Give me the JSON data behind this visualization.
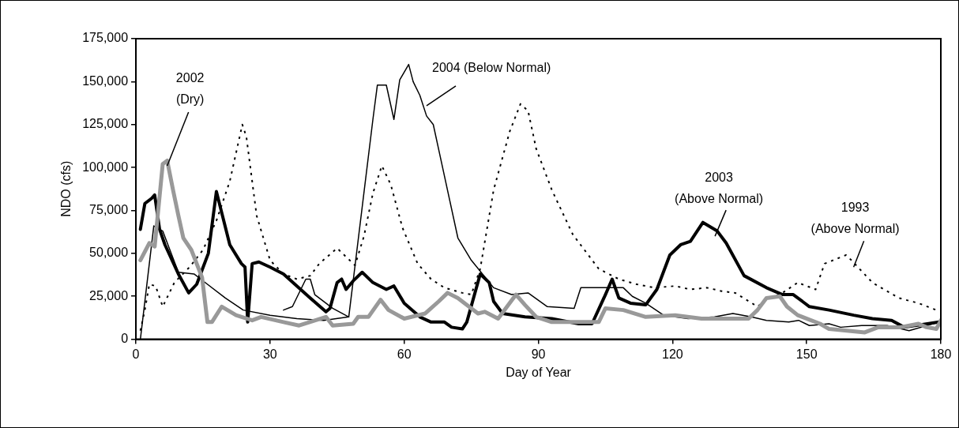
{
  "chart_data": {
    "type": "line",
    "xlabel": "Day of Year",
    "ylabel": "NDO (cfs)",
    "xlim": [
      0,
      180
    ],
    "xticks": [
      0,
      30,
      60,
      90,
      120,
      150,
      180
    ],
    "ylim": [
      0,
      175000
    ],
    "yticks": [
      {
        "value": 0,
        "label": "0"
      },
      {
        "value": 25000,
        "label": "25,000"
      },
      {
        "value": 50000,
        "label": "50,000"
      },
      {
        "value": 75000,
        "label": "75,000"
      },
      {
        "value": 100000,
        "label": "100,000"
      },
      {
        "value": 125000,
        "label": "125,000"
      },
      {
        "value": 150000,
        "label": "150,000"
      },
      {
        "value": 175000,
        "label": "175,000"
      }
    ],
    "grid": false,
    "legend": false,
    "marker": "none",
    "series": [
      {
        "color": "#000000",
        "line_style": "dotted",
        "x": [
          1,
          2,
          3,
          4.4,
          6,
          8.6,
          12,
          15,
          18,
          21,
          23.8,
          24.7,
          27,
          30,
          33,
          36,
          39,
          41,
          45,
          49,
          51,
          53,
          55,
          57,
          59.6,
          63,
          66,
          69,
          73,
          75,
          77,
          80,
          83.6,
          86,
          87.7,
          89.5,
          93,
          97.7,
          103.5,
          108,
          112,
          116,
          120.6,
          124,
          127.7,
          131,
          134,
          136.5,
          139,
          141,
          144.6,
          148,
          152,
          154,
          158.8,
          160,
          164.7,
          170.6,
          175,
          179
        ],
        "values": [
          5000,
          17000,
          32000,
          31000,
          19000,
          33000,
          42000,
          52000,
          69000,
          92000,
          125000,
          118000,
          72000,
          46000,
          38000,
          35000,
          37000,
          44000,
          53000,
          43000,
          60000,
          85000,
          101000,
          90000,
          65000,
          44000,
          35000,
          30000,
          27000,
          26000,
          41000,
          87000,
          121000,
          137000,
          133000,
          111000,
          87000,
          61000,
          41000,
          35000,
          32000,
          30000,
          31000,
          29000,
          30000,
          28000,
          27000,
          23000,
          19000,
          23000,
          27000,
          33000,
          29000,
          44000,
          49000,
          46000,
          33000,
          24000,
          21000,
          17000
        ]
      },
      {
        "color": "#999999",
        "line_style": "solid",
        "x": [
          1,
          3,
          4.2,
          6,
          7,
          8.3,
          9.5,
          10.6,
          12.4,
          14.8,
          16,
          17,
          19.2,
          22.4,
          26,
          28,
          33,
          36.5,
          42.5,
          44,
          48.6,
          49.7,
          52,
          54.7,
          56.5,
          60,
          64.7,
          67.7,
          69.7,
          72,
          76.5,
          78,
          81,
          85,
          87,
          89.5,
          93,
          99,
          103.5,
          105,
          109,
          114,
          120.6,
          126.5,
          137,
          139,
          141,
          144,
          145.6,
          148,
          153,
          155,
          163,
          166,
          171,
          175,
          176.8,
          179,
          180
        ],
        "values": [
          46000,
          56000,
          54000,
          102000,
          104000,
          87000,
          72000,
          59000,
          52000,
          36000,
          10000,
          10000,
          19000,
          14000,
          11000,
          13000,
          10000,
          8000,
          13000,
          8000,
          9000,
          13000,
          13000,
          23000,
          17000,
          12000,
          15000,
          22000,
          27000,
          24000,
          15000,
          16000,
          12000,
          26000,
          20000,
          13000,
          10000,
          10000,
          10000,
          18000,
          17000,
          13000,
          14000,
          12000,
          12000,
          17000,
          24000,
          25000,
          19000,
          14000,
          9000,
          6000,
          4000,
          7000,
          7000,
          9000,
          7000,
          6000,
          11000
        ]
      },
      {
        "color": "#000000",
        "line_style": "solid",
        "x": [
          1,
          2,
          3.5,
          4.2,
          5.3,
          6.5,
          9.5,
          11.8,
          13.6,
          16.2,
          18,
          21,
          23.6,
          24.4,
          25,
          26,
          27.5,
          30,
          33,
          39,
          42.5,
          43.4,
          45,
          46,
          47,
          48.6,
          50.6,
          53,
          56,
          57.7,
          60,
          63.5,
          66,
          69,
          70.6,
          73,
          74,
          77,
          79,
          80,
          82,
          87,
          93,
          99,
          102,
          105,
          106.5,
          108,
          110.6,
          114,
          116.5,
          119.4,
          121.8,
          124,
          126.8,
          130,
          132,
          136,
          141,
          144.6,
          147,
          150.6,
          155,
          160.5,
          164.7,
          169,
          171.8,
          179.6
        ],
        "values": [
          64000,
          79000,
          82000,
          84000,
          64000,
          55000,
          38000,
          27000,
          32000,
          50000,
          86000,
          55000,
          44000,
          42000,
          10000,
          44000,
          45000,
          42000,
          38000,
          24000,
          16000,
          18000,
          33000,
          35000,
          29000,
          34000,
          39000,
          33000,
          29000,
          31000,
          21000,
          13000,
          10000,
          10000,
          7000,
          6000,
          10000,
          38000,
          33000,
          22000,
          15000,
          13000,
          12000,
          9000,
          9000,
          26000,
          35000,
          24000,
          21000,
          20000,
          29000,
          49000,
          55000,
          57000,
          68000,
          63000,
          56000,
          37000,
          30000,
          26000,
          26000,
          19000,
          17000,
          14000,
          12000,
          11000,
          7000,
          10000
        ]
      },
      {
        "color": "#000000",
        "line_style": "solid",
        "x": [
          1,
          4,
          6,
          9.5,
          13,
          16,
          20,
          24,
          30,
          36,
          42,
          47.6,
          53,
          54,
          56,
          57.7,
          59,
          61,
          62,
          63.5,
          65,
          66.5,
          68,
          72,
          75,
          80,
          84,
          87.7,
          92,
          98,
          99.5,
          104.7,
          109,
          111,
          114,
          118,
          123.5,
          129.4,
          133.5,
          137.6,
          141,
          146,
          148.2,
          150.6,
          155,
          157.6,
          162.3,
          168,
          172.9,
          179.6
        ],
        "values": [
          0,
          66000,
          63000,
          39000,
          38000,
          32000,
          24000,
          17000,
          14000,
          12000,
          11000,
          13000,
          128000,
          148000,
          148000,
          128000,
          151000,
          160000,
          150000,
          142000,
          130000,
          125000,
          107000,
          59000,
          46000,
          30000,
          26000,
          27000,
          19000,
          18000,
          30000,
          30000,
          30000,
          25000,
          21000,
          14000,
          12000,
          13000,
          15000,
          13000,
          11000,
          10000,
          11000,
          8000,
          9000,
          7000,
          8000,
          8000,
          5000,
          10000
        ]
      },
      {
        "color": "#000000",
        "line_style": "solid",
        "x": [
          33,
          35,
          38,
          39,
          40,
          44,
          47.6
        ],
        "values": [
          17000,
          19000,
          35000,
          35000,
          26000,
          18000,
          13000
        ]
      }
    ],
    "annotations": [
      {
        "text": "2002\n(Dry)",
        "x": 7,
        "y": 101000
      },
      {
        "text": "2004 (Below Normal)",
        "x": 65,
        "y": 136000
      },
      {
        "text": "2003\n(Above Normal)",
        "x": 129.5,
        "y": 60000
      },
      {
        "text": "1993\n(Above Normal)",
        "x": 160.5,
        "y": 42000
      }
    ]
  }
}
